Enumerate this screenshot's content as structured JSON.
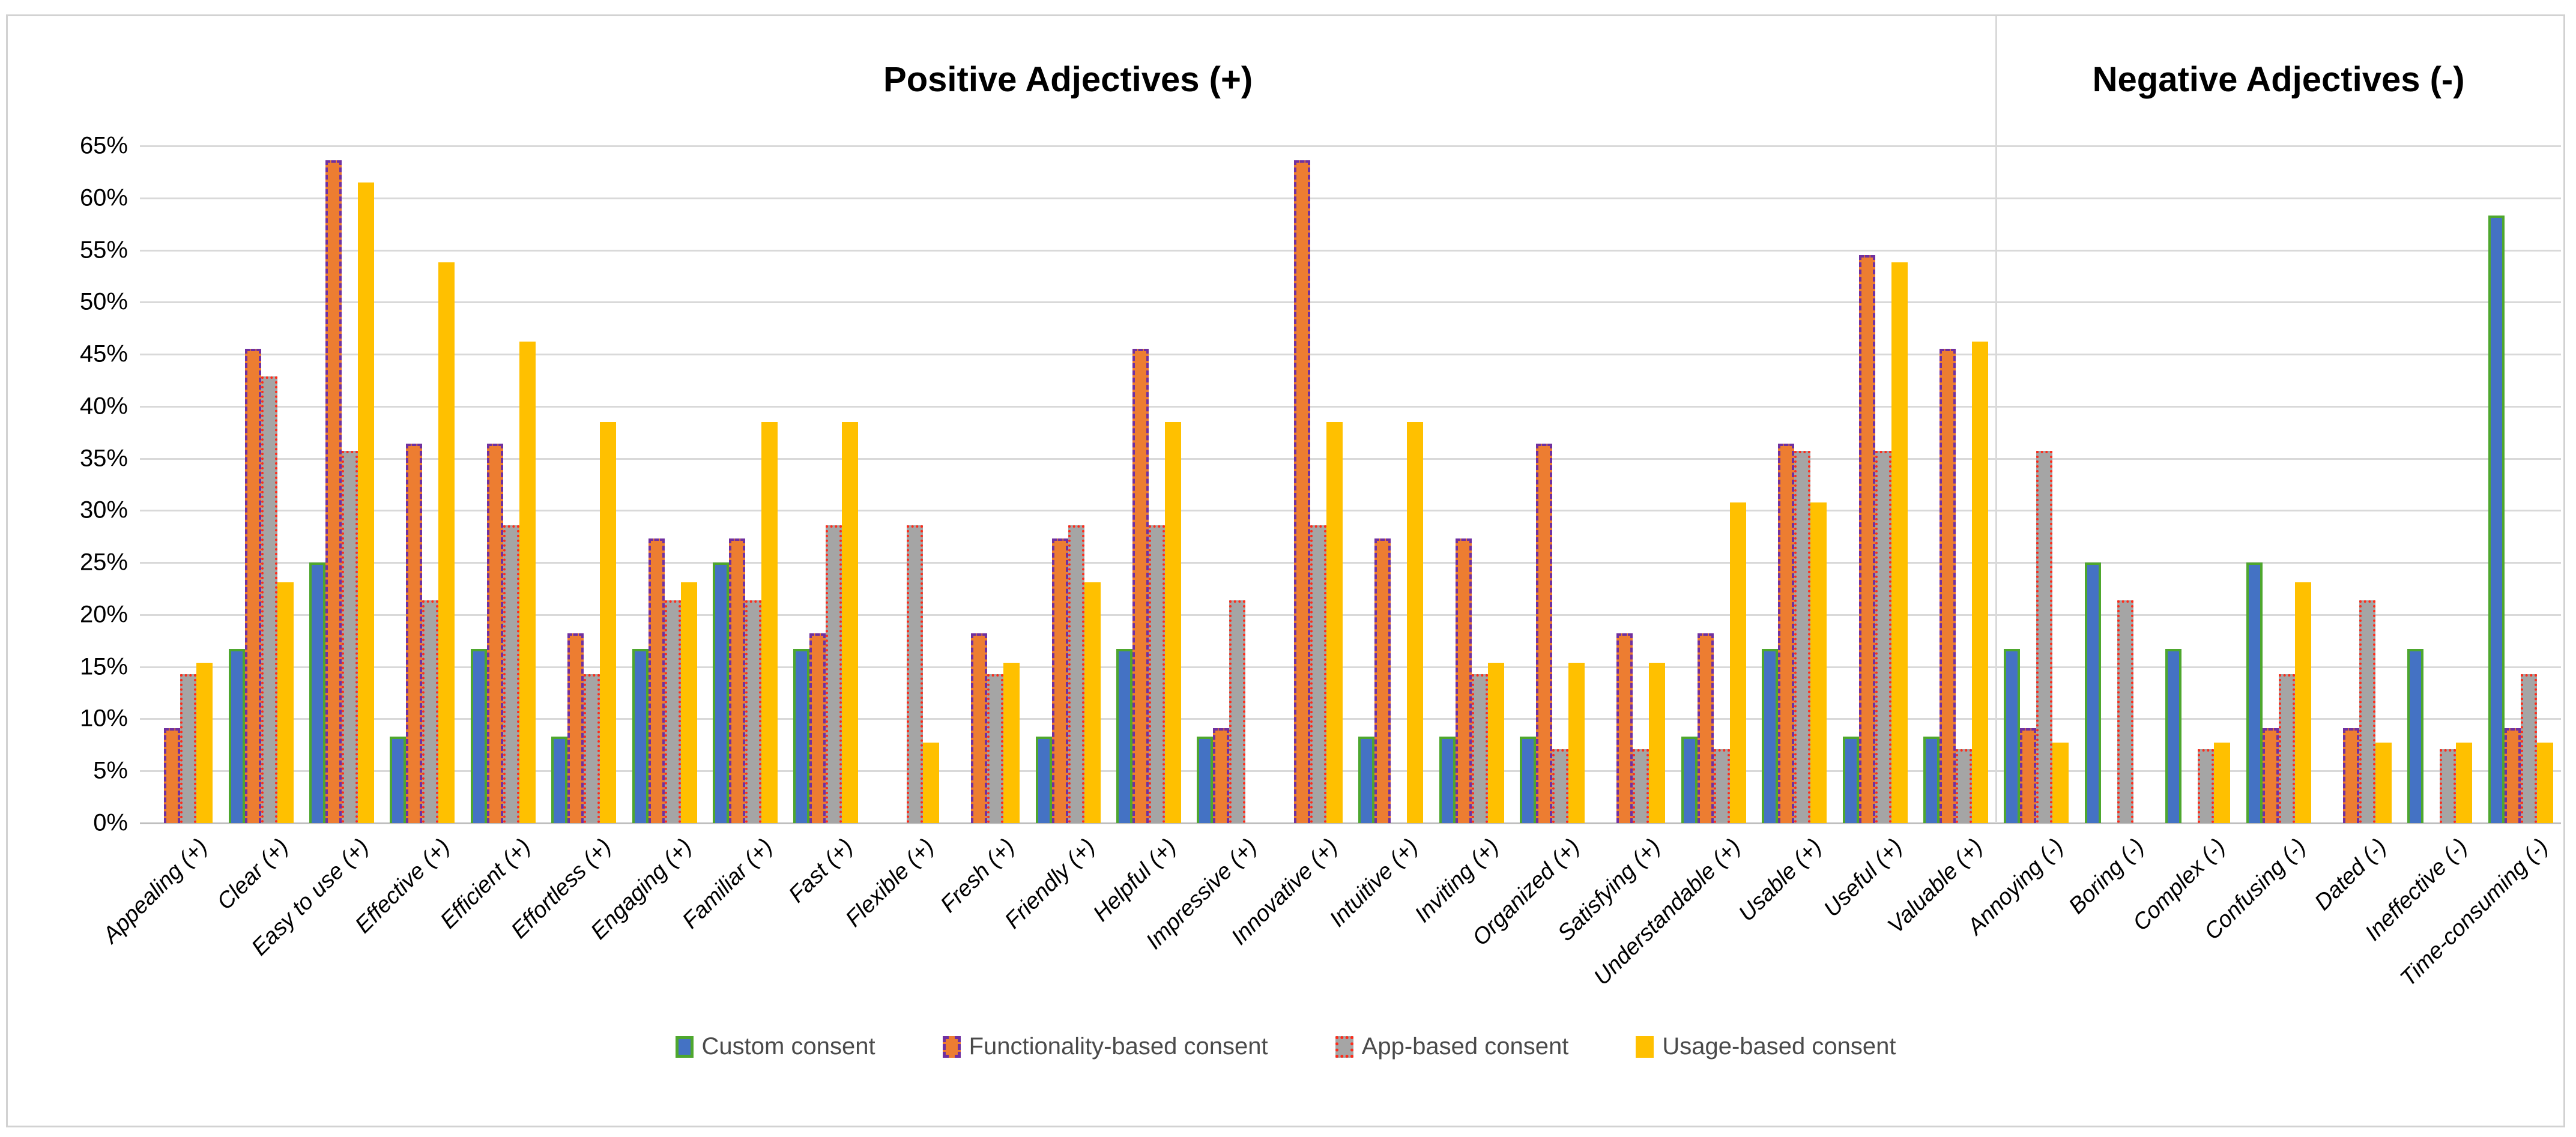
{
  "section_titles": {
    "positive": "Positive Adjectives (+)",
    "negative": "Negative Adjectives (-)"
  },
  "chart_data": {
    "type": "bar",
    "title": "",
    "xlabel": "",
    "ylabel": "",
    "ylim": [
      0,
      65
    ],
    "ytick_step": 5,
    "ytick_suffix": "%",
    "grid": true,
    "legend_position": "bottom",
    "positive_group_count": 23,
    "categories": [
      "Appealing (+)",
      "Clear (+)",
      "Easy to use (+)",
      "Effective (+)",
      "Efficient (+)",
      "Effortless (+)",
      "Engaging (+)",
      "Familiar (+)",
      "Fast (+)",
      "Flexible (+)",
      "Fresh (+)",
      "Friendly (+)",
      "Helpful (+)",
      "Impressive (+)",
      "Innovative (+)",
      "Intuitive (+)",
      "Inviting (+)",
      "Organized (+)",
      "Satisfying (+)",
      "Understandable (+)",
      "Usable (+)",
      "Useful (+)",
      "Valuable (+)",
      "Annoying (-)",
      "Boring (-)",
      "Complex (-)",
      "Confusing (-)",
      "Dated (-)",
      "Ineffective (-)",
      "Time-consuming (-)"
    ],
    "series": [
      {
        "name": "Custom consent",
        "fill": "#4472c4",
        "border_color": "#4ea72e",
        "border_style": "solid",
        "values": [
          0,
          16.7,
          25,
          8.3,
          16.7,
          8.3,
          16.7,
          25,
          16.7,
          0,
          0,
          8.3,
          16.7,
          8.3,
          0,
          8.3,
          8.3,
          8.3,
          0,
          8.3,
          16.7,
          8.3,
          8.3,
          16.7,
          25,
          16.7,
          25,
          0,
          16.7,
          58.3
        ]
      },
      {
        "name": "Functionality-based consent",
        "fill": "#ed7d31",
        "border_color": "#7030a0",
        "border_style": "dashed",
        "values": [
          9.1,
          45.5,
          63.6,
          36.4,
          36.4,
          18.2,
          27.3,
          27.3,
          18.2,
          0,
          18.2,
          27.3,
          45.5,
          9.1,
          63.6,
          27.3,
          27.3,
          36.4,
          18.2,
          18.2,
          36.4,
          54.5,
          45.5,
          9.1,
          0,
          0,
          9.1,
          9.1,
          0,
          9.1
        ]
      },
      {
        "name": "App-based consent",
        "fill": "#a5a5a5",
        "border_color": "#ff2b1a",
        "border_style": "dotted",
        "values": [
          14.3,
          42.9,
          35.7,
          21.4,
          28.6,
          14.3,
          21.4,
          21.4,
          28.6,
          28.6,
          14.3,
          28.6,
          28.6,
          21.4,
          28.6,
          0,
          14.3,
          7.1,
          7.1,
          7.1,
          35.7,
          35.7,
          7.1,
          35.7,
          21.4,
          7.1,
          14.3,
          21.4,
          7.1,
          14.3
        ]
      },
      {
        "name": "Usage-based consent",
        "fill": "#ffc000",
        "border_color": "none",
        "border_style": "none",
        "values": [
          15.4,
          23.1,
          61.5,
          53.8,
          46.2,
          38.5,
          23.1,
          38.5,
          38.5,
          7.7,
          15.4,
          23.1,
          38.5,
          0,
          38.5,
          38.5,
          15.4,
          15.4,
          15.4,
          30.8,
          30.8,
          53.8,
          46.2,
          7.7,
          0,
          7.7,
          23.1,
          7.7,
          7.7,
          7.7
        ]
      }
    ]
  }
}
